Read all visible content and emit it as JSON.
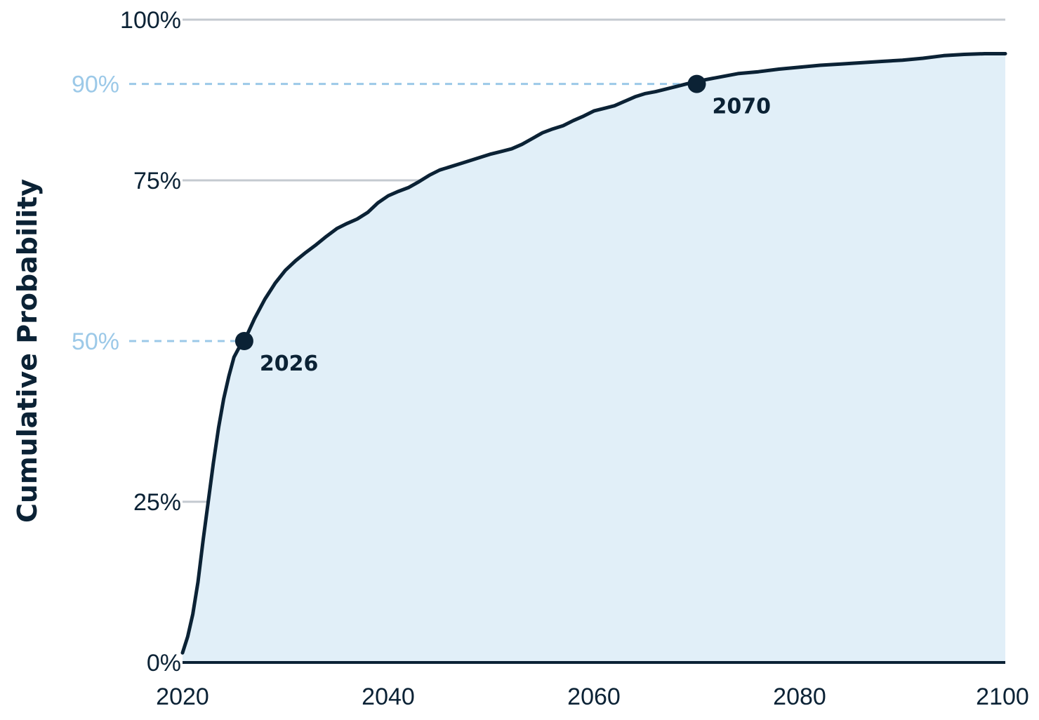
{
  "chart_data": {
    "type": "area",
    "title": "",
    "xlabel": "",
    "ylabel": "Cumulative Probability",
    "xlim": [
      2020,
      2100
    ],
    "ylim": [
      0,
      100
    ],
    "x_ticks": [
      {
        "value": 2020,
        "label": "2020"
      },
      {
        "value": 2040,
        "label": "2040"
      },
      {
        "value": 2060,
        "label": "2060"
      },
      {
        "value": 2080,
        "label": "2080"
      },
      {
        "value": 2100,
        "label": "2100"
      }
    ],
    "y_ticks": [
      {
        "value": 0,
        "label": "0%",
        "style": "solid"
      },
      {
        "value": 25,
        "label": "25%",
        "style": "solid"
      },
      {
        "value": 50,
        "label": "50%",
        "style": "dashed-highlight"
      },
      {
        "value": 75,
        "label": "75%",
        "style": "solid"
      },
      {
        "value": 90,
        "label": "90%",
        "style": "dashed-highlight"
      },
      {
        "value": 100,
        "label": "100%",
        "style": "solid"
      }
    ],
    "grid": true,
    "series": [
      {
        "x": [
          2020,
          2020.5,
          2021,
          2021.5,
          2022,
          2022.5,
          2023,
          2023.5,
          2024,
          2024.5,
          2025,
          2025.5,
          2026,
          2027,
          2028,
          2029,
          2030,
          2031,
          2032,
          2033,
          2034,
          2035,
          2036,
          2037,
          2038,
          2039,
          2040,
          2041,
          2042,
          2043,
          2044,
          2045,
          2046,
          2047,
          2048,
          2049,
          2050,
          2051,
          2052,
          2053,
          2054,
          2055,
          2056,
          2057,
          2058,
          2059,
          2060,
          2061,
          2062,
          2063,
          2064,
          2065,
          2066,
          2067,
          2068,
          2069,
          2070,
          2072,
          2074,
          2076,
          2078,
          2080,
          2082,
          2084,
          2086,
          2088,
          2090,
          2092,
          2094,
          2096,
          2098,
          2100
        ],
        "values": [
          1.5,
          4,
          7.5,
          12.5,
          19,
          25,
          31,
          36.5,
          41,
          44.5,
          47.5,
          49,
          50,
          53.5,
          56.5,
          59,
          61,
          62.5,
          63.8,
          65,
          66.3,
          67.5,
          68.3,
          69,
          70,
          71.5,
          72.6,
          73.3,
          73.9,
          74.8,
          75.8,
          76.6,
          77.1,
          77.6,
          78.1,
          78.6,
          79.1,
          79.5,
          79.9,
          80.6,
          81.5,
          82.4,
          83,
          83.5,
          84.3,
          85,
          85.8,
          86.2,
          86.6,
          87.3,
          88,
          88.5,
          88.8,
          89.2,
          89.6,
          90.0,
          90.4,
          91.0,
          91.6,
          91.9,
          92.3,
          92.6,
          92.9,
          93.1,
          93.3,
          93.5,
          93.7,
          94.0,
          94.4,
          94.6,
          94.7,
          94.7
        ]
      }
    ],
    "annotations": [
      {
        "x": 2026,
        "y": 50,
        "label": "2026"
      },
      {
        "x": 2070,
        "y": 90,
        "label": "2070"
      }
    ],
    "colors": {
      "line": "#0b2235",
      "fill": "#e1eff8",
      "grid": "#c4cad0",
      "highlight": "#9cc9e8",
      "axis": "#0b2235"
    }
  }
}
